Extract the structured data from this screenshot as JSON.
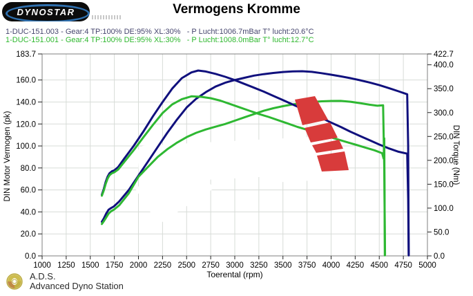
{
  "brand": {
    "logo_text": "DYNOSTAR"
  },
  "title": "Vermogens Kromme",
  "runs": [
    {
      "id": "1-DUC-151.003",
      "label": "1-DUC-151.003 - Gear:4 TP:100% DE:95% XL:30%   - P Lucht:1006.7mBar T° lucht:20.6°C",
      "color": "#46466e"
    },
    {
      "id": "1-DUC-151.001",
      "label": "1-DUC-151.001 - Gear:4 TP:100% DE:95% XL:30%   - P Lucht:1008.0mBar T° lucht:12.7°C",
      "color": "#2eb82e"
    }
  ],
  "footer": {
    "abbr": "A.D.S.",
    "name": "Advanced Dyno Station"
  },
  "watermark": {
    "arrow_color": "#d83b3b"
  },
  "chart_data": {
    "type": "line",
    "title": "Vermogens Kromme",
    "xlabel": "Toerental (rpm)",
    "ylabel_left": "DIN Motor Vermogen (pk)",
    "ylabel_right": "DIN Torque (Nm)",
    "xlim": [
      1000,
      5000
    ],
    "ylim_left": [
      0,
      183.7
    ],
    "ylim_right": [
      0,
      422.7
    ],
    "grid": true,
    "x_ticks": [
      1000,
      1250,
      1500,
      1750,
      2000,
      2250,
      2500,
      2750,
      3000,
      3250,
      3500,
      3750,
      4000,
      4250,
      4500,
      4750,
      5000
    ],
    "y_ticks_left": [
      "183.7",
      "160.0",
      "140.0",
      "120.0",
      "100.0",
      "80.0",
      "60.0",
      "40.0",
      "20.0",
      "0.0"
    ],
    "y_ticks_right": [
      "422.7",
      "400.0",
      "350.0",
      "300.0",
      "250.0",
      "200.0",
      "150.0",
      "100.0",
      "50.0",
      "0.0"
    ],
    "series": [
      {
        "name": "1-DUC-151.003 vermogen (pk)",
        "axis": "left",
        "color": "#10107d",
        "points": [
          [
            1620,
            31
          ],
          [
            1640,
            34
          ],
          [
            1665,
            38.5
          ],
          [
            1690,
            42
          ],
          [
            1715,
            43.5
          ],
          [
            1745,
            45
          ],
          [
            1800,
            49.5
          ],
          [
            1900,
            60
          ],
          [
            2000,
            73
          ],
          [
            2100,
            86
          ],
          [
            2200,
            99
          ],
          [
            2300,
            112
          ],
          [
            2400,
            124
          ],
          [
            2500,
            135
          ],
          [
            2600,
            143
          ],
          [
            2700,
            149
          ],
          [
            2800,
            154
          ],
          [
            2900,
            157.5
          ],
          [
            3000,
            160
          ],
          [
            3100,
            162
          ],
          [
            3200,
            164
          ],
          [
            3300,
            165.3
          ],
          [
            3400,
            166.4
          ],
          [
            3500,
            167.3
          ],
          [
            3600,
            167.8
          ],
          [
            3700,
            168
          ],
          [
            3800,
            167.4
          ],
          [
            3900,
            166.2
          ],
          [
            4000,
            164.8
          ],
          [
            4100,
            163.3
          ],
          [
            4200,
            161.7
          ],
          [
            4300,
            159.8
          ],
          [
            4400,
            157.7
          ],
          [
            4500,
            155.3
          ],
          [
            4600,
            152.6
          ],
          [
            4700,
            149.7
          ],
          [
            4790,
            147
          ],
          [
            4800,
            100
          ],
          [
            4806,
            1
          ]
        ]
      },
      {
        "name": "1-DUC-151.001 vermogen (pk)",
        "axis": "left",
        "color": "#2eb832",
        "points": [
          [
            1620,
            29
          ],
          [
            1640,
            31.5
          ],
          [
            1665,
            35
          ],
          [
            1690,
            38.5
          ],
          [
            1715,
            40.5
          ],
          [
            1745,
            42
          ],
          [
            1800,
            46
          ],
          [
            1900,
            57
          ],
          [
            2000,
            72
          ],
          [
            2100,
            81
          ],
          [
            2200,
            90
          ],
          [
            2300,
            97
          ],
          [
            2400,
            103
          ],
          [
            2500,
            108
          ],
          [
            2600,
            112
          ],
          [
            2700,
            115
          ],
          [
            2800,
            117.5
          ],
          [
            2900,
            120
          ],
          [
            3000,
            123
          ],
          [
            3100,
            126
          ],
          [
            3200,
            129
          ],
          [
            3300,
            132
          ],
          [
            3400,
            134.3
          ],
          [
            3500,
            136.2
          ],
          [
            3600,
            137.8
          ],
          [
            3700,
            139
          ],
          [
            3800,
            140
          ],
          [
            3900,
            140.6
          ],
          [
            4000,
            140.9
          ],
          [
            4100,
            141
          ],
          [
            4200,
            140.2
          ],
          [
            4300,
            139
          ],
          [
            4400,
            137.5
          ],
          [
            4480,
            136.6
          ],
          [
            4540,
            137
          ],
          [
            4552,
            80
          ],
          [
            4560,
            1
          ]
        ]
      },
      {
        "name": "1-DUC-151.003 koppel (Nm)",
        "axis": "right",
        "color": "#10107d",
        "points": [
          [
            1620,
            128
          ],
          [
            1640,
            140
          ],
          [
            1660,
            155
          ],
          [
            1680,
            166
          ],
          [
            1700,
            173
          ],
          [
            1725,
            177
          ],
          [
            1750,
            179
          ],
          [
            1790,
            186
          ],
          [
            1850,
            203
          ],
          [
            1950,
            230
          ],
          [
            2050,
            260
          ],
          [
            2150,
            292
          ],
          [
            2250,
            322
          ],
          [
            2350,
            350
          ],
          [
            2450,
            372
          ],
          [
            2550,
            384
          ],
          [
            2620,
            388
          ],
          [
            2700,
            386
          ],
          [
            2800,
            381
          ],
          [
            2900,
            375
          ],
          [
            3000,
            368
          ],
          [
            3100,
            360
          ],
          [
            3200,
            352
          ],
          [
            3300,
            344
          ],
          [
            3400,
            335
          ],
          [
            3500,
            326
          ],
          [
            3600,
            317
          ],
          [
            3700,
            308
          ],
          [
            3800,
            298
          ],
          [
            3900,
            289
          ],
          [
            4000,
            279
          ],
          [
            4100,
            270
          ],
          [
            4200,
            260
          ],
          [
            4300,
            251
          ],
          [
            4400,
            242
          ],
          [
            4500,
            233
          ],
          [
            4600,
            225
          ],
          [
            4700,
            218
          ],
          [
            4790,
            214
          ],
          [
            4800,
            120
          ],
          [
            4806,
            1
          ]
        ]
      },
      {
        "name": "1-DUC-151.001 koppel (Nm)",
        "axis": "right",
        "color": "#2eb832",
        "points": [
          [
            1620,
            126
          ],
          [
            1640,
            137
          ],
          [
            1660,
            151
          ],
          [
            1680,
            162
          ],
          [
            1700,
            169
          ],
          [
            1725,
            173
          ],
          [
            1750,
            175
          ],
          [
            1790,
            181
          ],
          [
            1850,
            196
          ],
          [
            1950,
            221
          ],
          [
            2050,
            248
          ],
          [
            2150,
            274
          ],
          [
            2250,
            299
          ],
          [
            2350,
            317
          ],
          [
            2450,
            328
          ],
          [
            2550,
            334
          ],
          [
            2650,
            333
          ],
          [
            2750,
            330
          ],
          [
            2850,
            325
          ],
          [
            2950,
            318
          ],
          [
            3050,
            311
          ],
          [
            3150,
            304
          ],
          [
            3250,
            297
          ],
          [
            3350,
            291
          ],
          [
            3450,
            284
          ],
          [
            3550,
            277
          ],
          [
            3650,
            270
          ],
          [
            3750,
            264
          ],
          [
            3850,
            257
          ],
          [
            3950,
            251
          ],
          [
            4050,
            245
          ],
          [
            4150,
            239
          ],
          [
            4250,
            233
          ],
          [
            4350,
            227
          ],
          [
            4450,
            221
          ],
          [
            4530,
            215
          ],
          [
            4545,
            204
          ],
          [
            4552,
            246
          ],
          [
            4558,
            1
          ]
        ]
      }
    ]
  }
}
